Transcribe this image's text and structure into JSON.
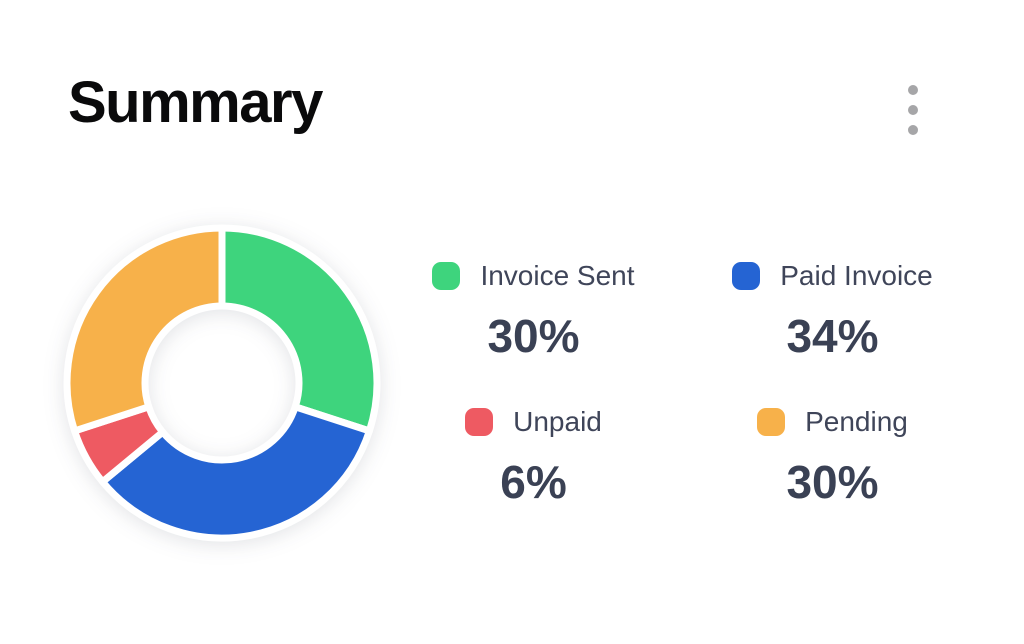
{
  "header": {
    "title": "Summary",
    "menu_icon": "kebab-menu-icon"
  },
  "chart_data": {
    "type": "pie",
    "variant": "donut",
    "title": "Summary",
    "categories": [
      "Invoice Sent",
      "Paid Invoice",
      "Unpaid",
      "Pending"
    ],
    "values": [
      30,
      34,
      6,
      30
    ],
    "unit": "%",
    "colors": [
      "#3ed47d",
      "#2564d3",
      "#ee5a62",
      "#f7b14a"
    ],
    "start_angle_deg": 0,
    "direction": "clockwise",
    "inner_radius_ratio": 0.5,
    "segment_gap_color": "#ffffff",
    "legend_position": "right",
    "legend": [
      {
        "label": "Invoice Sent",
        "value": "30%",
        "color": "#3ed47d"
      },
      {
        "label": "Paid Invoice",
        "value": "34%",
        "color": "#2564d3"
      },
      {
        "label": "Unpaid",
        "value": "6%",
        "color": "#ee5a62"
      },
      {
        "label": "Pending",
        "value": "30%",
        "color": "#f7b14a"
      }
    ]
  }
}
